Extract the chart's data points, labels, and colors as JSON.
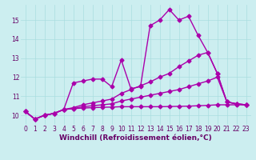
{
  "background_color": "#cceef0",
  "grid_color": "#aadddf",
  "line_color": "#aa00aa",
  "marker": "D",
  "markersize": 2.5,
  "linewidth": 1.0,
  "xlabel": "Windchill (Refroidissement éolien,°C)",
  "xlabel_fontsize": 6.5,
  "tick_fontsize": 5.5,
  "xlim": [
    -0.5,
    23.5
  ],
  "ylim": [
    9.5,
    15.8
  ],
  "yticks": [
    10,
    11,
    12,
    13,
    14,
    15
  ],
  "xticks": [
    0,
    1,
    2,
    3,
    4,
    5,
    6,
    7,
    8,
    9,
    10,
    11,
    12,
    13,
    14,
    15,
    16,
    17,
    18,
    19,
    20,
    21,
    22,
    23
  ],
  "series": [
    [
      10.2,
      9.8,
      10.0,
      10.1,
      10.3,
      11.7,
      11.8,
      11.9,
      11.9,
      11.5,
      12.9,
      11.4,
      11.5,
      14.7,
      15.0,
      15.55,
      15.0,
      15.2,
      14.2,
      13.3,
      12.2,
      10.7,
      10.6,
      10.55
    ],
    [
      10.2,
      9.8,
      10.0,
      10.1,
      10.3,
      10.4,
      10.55,
      10.65,
      10.75,
      10.85,
      11.15,
      11.35,
      11.55,
      11.75,
      12.0,
      12.2,
      12.55,
      12.85,
      13.15,
      13.3,
      12.2,
      10.7,
      10.6,
      10.55
    ],
    [
      10.2,
      9.8,
      10.0,
      10.1,
      10.3,
      10.35,
      10.45,
      10.5,
      10.55,
      10.6,
      10.75,
      10.85,
      10.95,
      11.05,
      11.15,
      11.25,
      11.35,
      11.5,
      11.65,
      11.8,
      12.0,
      10.7,
      10.6,
      10.55
    ],
    [
      10.2,
      9.8,
      10.0,
      10.1,
      10.3,
      10.35,
      10.38,
      10.4,
      10.42,
      10.43,
      10.45,
      10.45,
      10.45,
      10.45,
      10.45,
      10.46,
      10.47,
      10.48,
      10.5,
      10.52,
      10.55,
      10.55,
      10.55,
      10.55
    ]
  ]
}
